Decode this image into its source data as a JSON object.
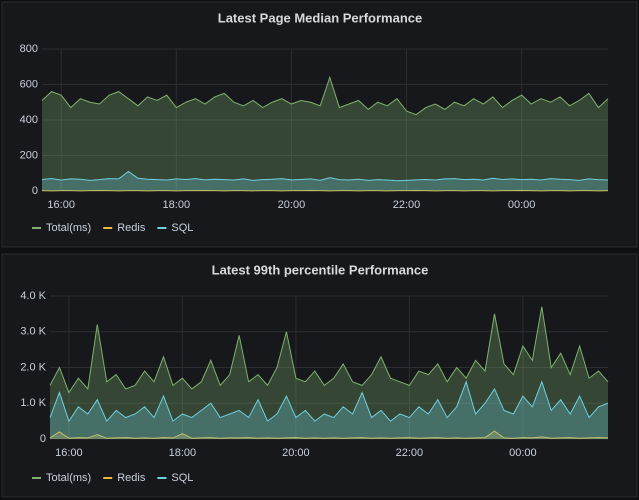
{
  "chart_data": [
    {
      "type": "line",
      "title": "Latest Page Median Performance",
      "grid": true,
      "legend": "bottom",
      "x": [
        "15:40",
        "15:50",
        "16:00",
        "16:10",
        "16:20",
        "16:30",
        "16:40",
        "16:50",
        "17:00",
        "17:10",
        "17:20",
        "17:30",
        "17:40",
        "17:50",
        "18:00",
        "18:10",
        "18:20",
        "18:30",
        "18:40",
        "18:50",
        "19:00",
        "19:10",
        "19:20",
        "19:30",
        "19:40",
        "19:50",
        "20:00",
        "20:10",
        "20:20",
        "20:30",
        "20:40",
        "20:50",
        "21:00",
        "21:10",
        "21:20",
        "21:30",
        "21:40",
        "21:50",
        "22:00",
        "22:10",
        "22:20",
        "22:30",
        "22:40",
        "22:50",
        "23:00",
        "23:10",
        "23:20",
        "23:30",
        "23:40",
        "23:50",
        "00:00",
        "00:10",
        "00:20",
        "00:30",
        "00:40",
        "00:50",
        "01:00",
        "01:10",
        "01:20",
        "01:30"
      ],
      "xticks": [
        "16:00",
        "18:00",
        "20:00",
        "22:00",
        "00:00"
      ],
      "ylim": [
        0,
        800
      ],
      "yticks": [
        0,
        200,
        400,
        600,
        800
      ],
      "series": [
        {
          "name": "Total(ms)",
          "color": "#7eb26d",
          "values": [
            510,
            560,
            540,
            470,
            520,
            500,
            490,
            540,
            560,
            520,
            480,
            530,
            510,
            540,
            470,
            500,
            520,
            490,
            530,
            550,
            500,
            480,
            510,
            470,
            500,
            520,
            490,
            510,
            500,
            480,
            640,
            470,
            490,
            510,
            460,
            500,
            480,
            520,
            450,
            430,
            470,
            490,
            460,
            500,
            480,
            520,
            490,
            530,
            470,
            510,
            540,
            490,
            520,
            500,
            530,
            480,
            510,
            550,
            470,
            520
          ]
        },
        {
          "name": "Redis",
          "color": "#eab839",
          "values": [
            2,
            1,
            2,
            2,
            1,
            2,
            3,
            2,
            1,
            2,
            2,
            1,
            2,
            2,
            1,
            2,
            2,
            3,
            2,
            1,
            2,
            2,
            1,
            2,
            2,
            1,
            2,
            2,
            3,
            2,
            1,
            2,
            2,
            1,
            2,
            2,
            1,
            2,
            2,
            3,
            2,
            1,
            2,
            2,
            1,
            2,
            2,
            1,
            2,
            2,
            3,
            2,
            1,
            2,
            2,
            1,
            2,
            2,
            1,
            2
          ]
        },
        {
          "name": "SQL",
          "color": "#6ed0e0",
          "values": [
            65,
            70,
            62,
            68,
            66,
            60,
            64,
            70,
            68,
            110,
            72,
            66,
            64,
            62,
            68,
            65,
            70,
            63,
            66,
            64,
            62,
            68,
            60,
            64,
            66,
            70,
            63,
            65,
            68,
            60,
            75,
            64,
            62,
            66,
            60,
            64,
            62,
            58,
            60,
            63,
            65,
            62,
            68,
            70,
            64,
            66,
            62,
            72,
            65,
            68,
            64,
            66,
            62,
            70,
            66,
            64,
            60,
            68,
            64,
            62
          ]
        }
      ]
    },
    {
      "type": "line",
      "title": "Latest 99th percentile Performance",
      "grid": true,
      "legend": "bottom",
      "x": [
        "15:40",
        "15:50",
        "16:00",
        "16:10",
        "16:20",
        "16:30",
        "16:40",
        "16:50",
        "17:00",
        "17:10",
        "17:20",
        "17:30",
        "17:40",
        "17:50",
        "18:00",
        "18:10",
        "18:20",
        "18:30",
        "18:40",
        "18:50",
        "19:00",
        "19:10",
        "19:20",
        "19:30",
        "19:40",
        "19:50",
        "20:00",
        "20:10",
        "20:20",
        "20:30",
        "20:40",
        "20:50",
        "21:00",
        "21:10",
        "21:20",
        "21:30",
        "21:40",
        "21:50",
        "22:00",
        "22:10",
        "22:20",
        "22:30",
        "22:40",
        "22:50",
        "23:00",
        "23:10",
        "23:20",
        "23:30",
        "23:40",
        "23:50",
        "00:00",
        "00:10",
        "00:20",
        "00:30",
        "00:40",
        "00:50",
        "01:00",
        "01:10",
        "01:20",
        "01:30"
      ],
      "xticks": [
        "16:00",
        "18:00",
        "20:00",
        "22:00",
        "00:00"
      ],
      "ylim": [
        0,
        4000
      ],
      "yticks": [
        0,
        {
          "value": 1000,
          "label": "1.0 K"
        },
        {
          "value": 2000,
          "label": "2.0 K"
        },
        {
          "value": 3000,
          "label": "3.0 K"
        },
        {
          "value": 4000,
          "label": "4.0 K"
        }
      ],
      "series": [
        {
          "name": "Total(ms)",
          "color": "#7eb26d",
          "values": [
            1500,
            2000,
            1300,
            1700,
            1400,
            3200,
            1600,
            1800,
            1400,
            1500,
            1900,
            1600,
            2300,
            1500,
            1700,
            1400,
            1600,
            2200,
            1500,
            1800,
            2900,
            1600,
            1800,
            1500,
            2000,
            3000,
            1700,
            1600,
            1900,
            1500,
            1700,
            2100,
            1600,
            1500,
            1800,
            2300,
            1700,
            1600,
            1500,
            1900,
            1800,
            2100,
            1600,
            2000,
            1700,
            2200,
            1900,
            3500,
            2100,
            1800,
            2600,
            2200,
            3700,
            2000,
            2400,
            1800,
            2600,
            1700,
            1900,
            1600
          ]
        },
        {
          "name": "Redis",
          "color": "#eab839",
          "values": [
            30,
            200,
            20,
            40,
            30,
            120,
            20,
            30,
            40,
            20,
            30,
            20,
            40,
            30,
            150,
            20,
            30,
            40,
            20,
            30,
            30,
            40,
            20,
            30,
            20,
            30,
            40,
            20,
            30,
            20,
            30,
            20,
            30,
            40,
            20,
            30,
            20,
            30,
            40,
            20,
            30,
            40,
            20,
            30,
            20,
            30,
            40,
            220,
            30,
            20,
            40,
            30,
            60,
            20,
            30,
            40,
            20,
            30,
            40,
            30
          ]
        },
        {
          "name": "SQL",
          "color": "#6ed0e0",
          "values": [
            600,
            1300,
            500,
            900,
            700,
            1100,
            500,
            800,
            600,
            700,
            900,
            600,
            1200,
            500,
            700,
            600,
            800,
            1000,
            600,
            700,
            800,
            600,
            1100,
            500,
            700,
            1200,
            600,
            800,
            500,
            700,
            600,
            900,
            700,
            1300,
            600,
            800,
            500,
            700,
            600,
            900,
            700,
            1100,
            600,
            900,
            1600,
            700,
            1000,
            1400,
            800,
            700,
            1200,
            900,
            1600,
            800,
            1100,
            700,
            1200,
            600,
            900,
            1000
          ]
        }
      ]
    }
  ]
}
